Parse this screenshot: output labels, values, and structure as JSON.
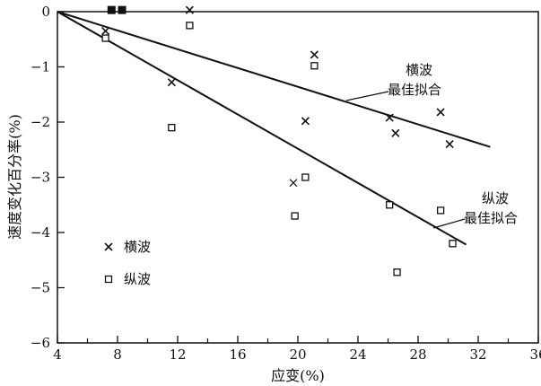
{
  "chart_data": {
    "type": "scatter",
    "xlabel": "应变(%)",
    "ylabel": "速度变化百分率(%)",
    "xlim": [
      4,
      36
    ],
    "ylim": [
      -6,
      0
    ],
    "xticks": [
      4,
      8,
      12,
      16,
      20,
      24,
      28,
      32,
      36
    ],
    "xtick_labels": [
      "4",
      "8",
      "12",
      "16",
      "20",
      "24",
      "28",
      "32",
      "36"
    ],
    "xminor": [
      6,
      10,
      14,
      18,
      22,
      26,
      30,
      34
    ],
    "yticks": [
      0,
      -1,
      -2,
      -3,
      -4,
      -5,
      -6
    ],
    "ytick_labels": [
      "0",
      "−1",
      "−2",
      "−3",
      "−4",
      "−5",
      "−6"
    ],
    "grid": false,
    "legend_position": "lower-left",
    "series": [
      {
        "name": "横波",
        "marker": "x",
        "points": [
          [
            7.2,
            -0.35
          ],
          [
            11.6,
            -1.28
          ],
          [
            12.8,
            0.03
          ],
          [
            21.1,
            -0.78
          ],
          [
            20.5,
            -1.98
          ],
          [
            26.1,
            -1.92
          ],
          [
            26.5,
            -2.2
          ],
          [
            29.5,
            -1.82
          ],
          [
            30.1,
            -2.4
          ]
        ]
      },
      {
        "name": "纵波",
        "marker": "open-square",
        "points": [
          [
            7.2,
            -0.48
          ],
          [
            11.6,
            -2.1
          ],
          [
            12.8,
            -0.25
          ],
          [
            21.1,
            -0.98
          ],
          [
            20.5,
            -3.0
          ],
          [
            19.8,
            -3.7
          ],
          [
            26.1,
            -3.5
          ],
          [
            26.6,
            -4.72
          ],
          [
            29.5,
            -3.6
          ],
          [
            30.3,
            -4.2
          ]
        ]
      },
      {
        "name": "",
        "marker": "filled-square",
        "points": [
          [
            7.6,
            0.03
          ],
          [
            8.3,
            0.03
          ]
        ]
      },
      {
        "name": "",
        "marker": "x-light",
        "points": [
          [
            19.7,
            -3.1
          ]
        ]
      }
    ],
    "fit_lines": [
      {
        "name": "横波最佳拟合",
        "x": [
          4,
          32.8
        ],
        "y": [
          0,
          -2.45
        ]
      },
      {
        "name": "纵波最佳拟合",
        "x": [
          4,
          31.2
        ],
        "y": [
          0,
          -4.22
        ]
      }
    ],
    "annotations": [
      {
        "lines": [
          "横波",
          "最佳拟合"
        ],
        "target": [
          23.6,
          -1.6
        ]
      },
      {
        "lines": [
          "纵波",
          "最佳拟合"
        ],
        "target": [
          30.4,
          -3.9
        ]
      }
    ],
    "legend": [
      {
        "label": "横波",
        "marker": "x"
      },
      {
        "label": "纵波",
        "marker": "open-square"
      }
    ]
  }
}
